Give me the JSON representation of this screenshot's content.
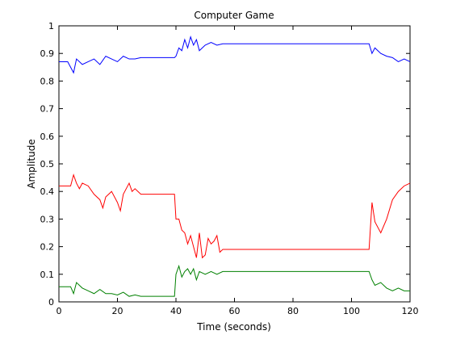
{
  "chart_data": {
    "type": "line",
    "title": "Computer Game",
    "xlabel": "Time (seconds)",
    "ylabel": "Amplitude",
    "xlim": [
      0,
      120
    ],
    "ylim": [
      0,
      1
    ],
    "xticks": [
      0,
      20,
      40,
      60,
      80,
      100,
      120
    ],
    "yticks": [
      0,
      0.1,
      0.2,
      0.3,
      0.4,
      0.5,
      0.6,
      0.7,
      0.8,
      0.9,
      1
    ],
    "grid": false,
    "legend": "none",
    "series": [
      {
        "color": "#0000ff",
        "x": [
          0,
          3,
          5,
          6,
          8,
          10,
          12,
          14,
          16,
          18,
          20,
          22,
          24,
          26,
          28,
          30,
          35,
          39.5,
          40,
          41,
          42,
          43,
          44,
          45,
          46,
          47,
          48,
          50,
          52,
          54,
          56,
          60,
          70,
          80,
          90,
          100,
          106,
          107,
          108,
          110,
          112,
          114,
          116,
          118,
          120
        ],
        "values": [
          0.87,
          0.87,
          0.83,
          0.88,
          0.86,
          0.87,
          0.88,
          0.86,
          0.89,
          0.88,
          0.87,
          0.89,
          0.88,
          0.88,
          0.885,
          0.885,
          0.885,
          0.885,
          0.89,
          0.92,
          0.91,
          0.95,
          0.92,
          0.96,
          0.93,
          0.95,
          0.91,
          0.93,
          0.94,
          0.93,
          0.935,
          0.935,
          0.935,
          0.935,
          0.935,
          0.935,
          0.935,
          0.9,
          0.92,
          0.9,
          0.89,
          0.885,
          0.87,
          0.88,
          0.87
        ]
      },
      {
        "color": "#ff0000",
        "x": [
          0,
          3,
          4,
          5,
          6,
          7,
          8,
          10,
          12,
          14,
          15,
          16,
          18,
          20,
          21,
          22,
          24,
          25,
          26,
          28,
          30,
          35,
          39.5,
          40,
          41,
          42,
          43,
          44,
          45,
          46,
          47,
          48,
          49,
          50,
          51,
          52,
          53,
          54,
          55,
          56,
          60,
          70,
          80,
          90,
          100,
          106,
          107,
          108,
          110,
          112,
          114,
          116,
          118,
          120
        ],
        "values": [
          0.42,
          0.42,
          0.42,
          0.46,
          0.43,
          0.41,
          0.43,
          0.42,
          0.39,
          0.37,
          0.34,
          0.38,
          0.4,
          0.36,
          0.33,
          0.39,
          0.43,
          0.4,
          0.41,
          0.39,
          0.39,
          0.39,
          0.39,
          0.3,
          0.3,
          0.26,
          0.25,
          0.21,
          0.24,
          0.2,
          0.16,
          0.25,
          0.16,
          0.17,
          0.23,
          0.21,
          0.22,
          0.24,
          0.18,
          0.19,
          0.19,
          0.19,
          0.19,
          0.19,
          0.19,
          0.19,
          0.36,
          0.29,
          0.25,
          0.3,
          0.37,
          0.4,
          0.42,
          0.43
        ]
      },
      {
        "color": "#008000",
        "x": [
          0,
          2,
          4,
          5,
          6,
          7,
          8,
          10,
          12,
          14,
          16,
          18,
          20,
          22,
          24,
          26,
          28,
          30,
          35,
          39.5,
          40,
          41,
          42,
          43,
          44,
          45,
          46,
          47,
          48,
          50,
          52,
          54,
          56,
          60,
          70,
          80,
          90,
          100,
          106,
          107,
          108,
          110,
          112,
          114,
          116,
          118,
          120
        ],
        "values": [
          0.055,
          0.055,
          0.055,
          0.03,
          0.07,
          0.06,
          0.05,
          0.04,
          0.03,
          0.045,
          0.03,
          0.03,
          0.025,
          0.035,
          0.02,
          0.025,
          0.02,
          0.02,
          0.02,
          0.02,
          0.1,
          0.13,
          0.09,
          0.11,
          0.12,
          0.1,
          0.12,
          0.08,
          0.11,
          0.1,
          0.11,
          0.1,
          0.11,
          0.11,
          0.11,
          0.11,
          0.11,
          0.11,
          0.11,
          0.08,
          0.06,
          0.07,
          0.05,
          0.04,
          0.05,
          0.04,
          0.04
        ]
      }
    ]
  }
}
